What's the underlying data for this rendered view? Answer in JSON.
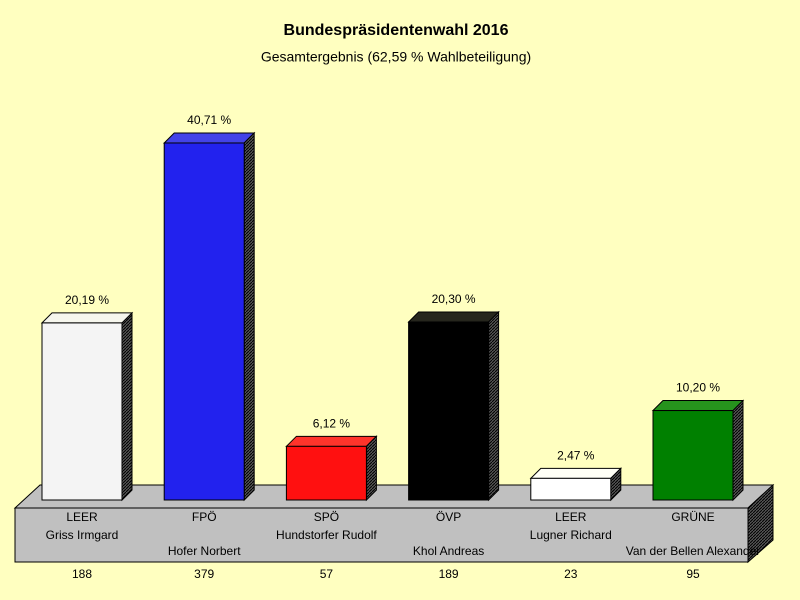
{
  "chart_data": {
    "type": "bar",
    "title": "Bundespräsidentenwahl 2016",
    "subtitle": "Gesamtergebnis (62,59 % Wahlbeteiligung)",
    "categories": [
      "LEER",
      "FPÖ",
      "SPÖ",
      "ÖVP",
      "LEER",
      "GRÜNE"
    ],
    "candidates": [
      "Griss Irmgard",
      "Hofer Norbert",
      "Hundstorfer Rudolf",
      "Khol Andreas",
      "Lugner Richard",
      "Van der Bellen Alexander"
    ],
    "values": [
      20.19,
      40.71,
      6.12,
      20.3,
      2.47,
      10.2
    ],
    "value_labels": [
      "20,19 %",
      "40,71 %",
      "6,12 %",
      "20,30 %",
      "2,47 %",
      "10,20 %"
    ],
    "counts": [
      188,
      379,
      57,
      189,
      23,
      95
    ],
    "colors": [
      "#f4f4f4",
      "#2222ee",
      "#ff1010",
      "#000000",
      "#ffffff",
      "#008000"
    ]
  }
}
